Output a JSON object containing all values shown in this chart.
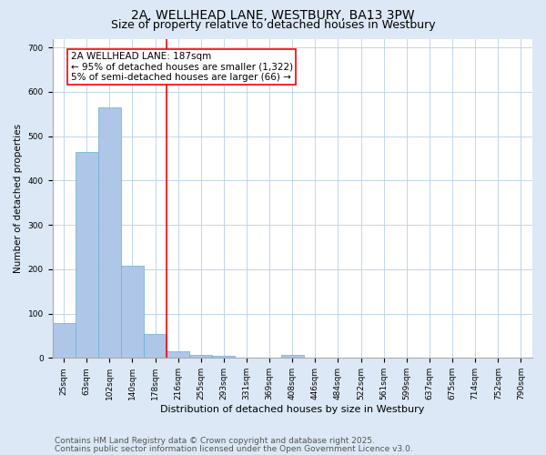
{
  "title": "2A, WELLHEAD LANE, WESTBURY, BA13 3PW",
  "subtitle": "Size of property relative to detached houses in Westbury",
  "xlabel": "Distribution of detached houses by size in Westbury",
  "ylabel": "Number of detached properties",
  "categories": [
    "25sqm",
    "63sqm",
    "102sqm",
    "140sqm",
    "178sqm",
    "216sqm",
    "255sqm",
    "293sqm",
    "331sqm",
    "369sqm",
    "408sqm",
    "446sqm",
    "484sqm",
    "522sqm",
    "561sqm",
    "599sqm",
    "637sqm",
    "675sqm",
    "714sqm",
    "752sqm",
    "790sqm"
  ],
  "values": [
    78,
    465,
    565,
    207,
    55,
    15,
    7,
    5,
    0,
    0,
    6,
    0,
    0,
    0,
    0,
    0,
    0,
    0,
    0,
    0,
    0
  ],
  "bar_color": "#aec6e8",
  "bar_edge_color": "#6baed6",
  "red_line_x": 4.5,
  "annotation_box_text": "2A WELLHEAD LANE: 187sqm\n← 95% of detached houses are smaller (1,322)\n5% of semi-detached houses are larger (66) →",
  "ylim": [
    0,
    720
  ],
  "yticks": [
    0,
    100,
    200,
    300,
    400,
    500,
    600,
    700
  ],
  "footnote1": "Contains HM Land Registry data © Crown copyright and database right 2025.",
  "footnote2": "Contains public sector information licensed under the Open Government Licence v3.0.",
  "background_color": "#dce8f5",
  "plot_bg_color": "#ffffff",
  "grid_color": "#b8cfe8",
  "title_fontsize": 10,
  "subtitle_fontsize": 9,
  "tick_fontsize": 6.5,
  "ylabel_fontsize": 7.5,
  "xlabel_fontsize": 8,
  "annot_fontsize": 7.5,
  "footnote_fontsize": 6.5
}
